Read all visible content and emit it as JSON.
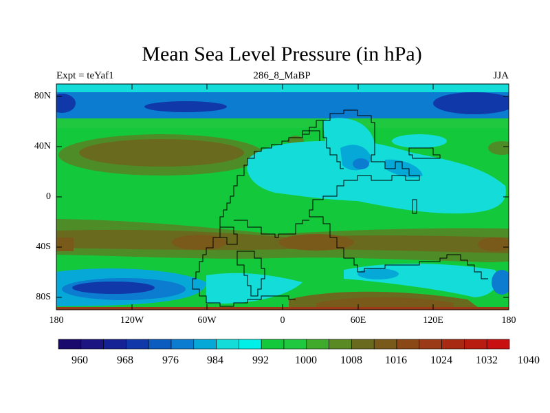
{
  "title": "Mean Sea Level Pressure (in hPa)",
  "subtitle_left": "Expt = teYaf1",
  "subtitle_center": "286_8_MaBP",
  "subtitle_right": "JJA",
  "y_ticks": [
    "80N",
    "40N",
    "0",
    "40S",
    "80S"
  ],
  "x_ticks": [
    "180",
    "120W",
    "60W",
    "0",
    "60E",
    "120E",
    "180"
  ],
  "colorbar_labels": [
    "960",
    "968",
    "976",
    "984",
    "992",
    "1000",
    "1008",
    "1016",
    "1024",
    "1032",
    "1040"
  ],
  "colorbar_colors": [
    "#1a0a6e",
    "#1c1480",
    "#142296",
    "#1038a8",
    "#0c5cc0",
    "#0c7cd0",
    "#06a8d8",
    "#14dcd8",
    "#00f0e8",
    "#14c83c",
    "#20c840",
    "#40aa2c",
    "#5a8a24",
    "#6a6a1e",
    "#7a5a1a",
    "#8a4816",
    "#9a3a16",
    "#a82a12",
    "#b81c10",
    "#c81010"
  ],
  "colors": {
    "deep_low": "#1038a8",
    "low": "#0c7cd0",
    "mid_low": "#06a8d8",
    "cyan": "#14dcd8",
    "green": "#14c83c",
    "olive": "#4e8c28",
    "brown": "#7a5a1a",
    "red_brown": "#9a3a16"
  }
}
